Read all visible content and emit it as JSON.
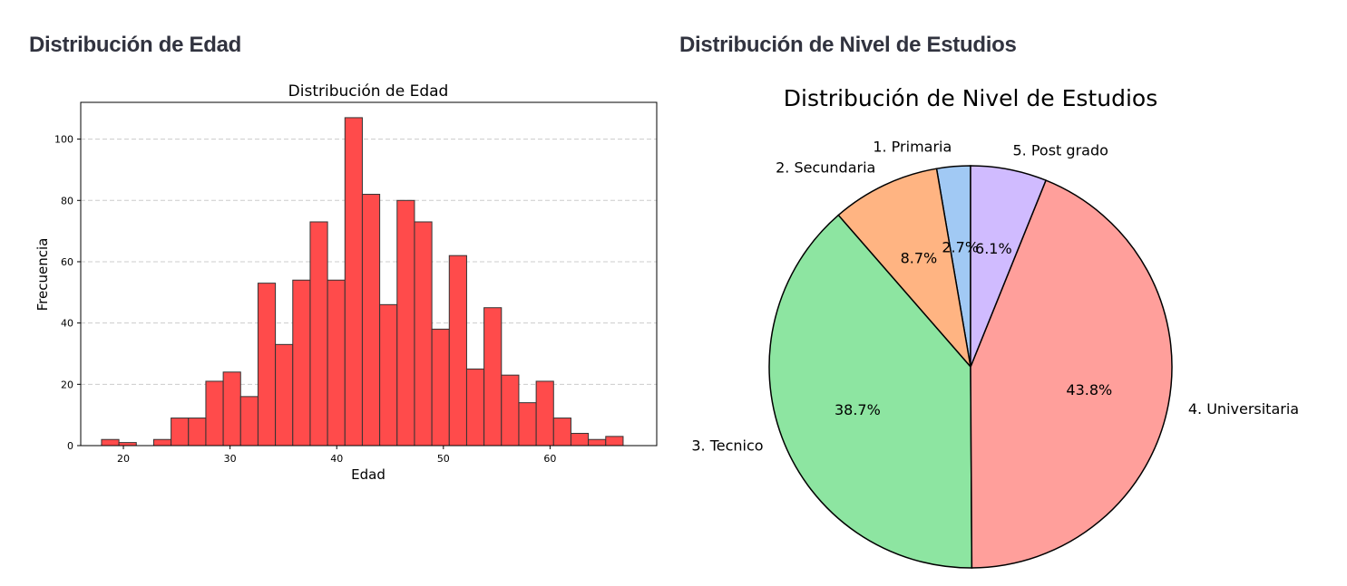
{
  "headings": {
    "left": "Distribución de Edad",
    "right": "Distribución de Nivel de Estudios"
  },
  "chart_data": [
    {
      "type": "bar",
      "subtype": "histogram",
      "title": "Distribución de Edad",
      "xlabel": "Edad",
      "ylabel": "Frecuencia",
      "xlim": [
        16,
        70
      ],
      "ylim": [
        0,
        112
      ],
      "x_ticks": [
        20,
        30,
        40,
        50,
        60
      ],
      "y_ticks": [
        0,
        20,
        40,
        60,
        80,
        100
      ],
      "grid": "y-dashed",
      "bar_color": "#ff4b4b",
      "bin_start": 17.95,
      "bin_width": 1.63,
      "values": [
        2,
        1,
        0,
        2,
        9,
        9,
        21,
        24,
        16,
        53,
        33,
        54,
        73,
        54,
        107,
        82,
        46,
        80,
        73,
        38,
        62,
        25,
        45,
        23,
        14,
        21,
        9,
        4,
        2,
        3
      ]
    },
    {
      "type": "pie",
      "title": "Distribución de Nivel de Estudios",
      "start_angle_deg": 90,
      "direction": "counterclockwise",
      "slices": [
        {
          "label": "1. Primaria",
          "percent": 2.7,
          "pct_text": "2.7%",
          "color": "#a1c9f4"
        },
        {
          "label": "2. Secundaria",
          "percent": 8.7,
          "pct_text": "8.7%",
          "color": "#ffb482"
        },
        {
          "label": "3. Tecnico",
          "percent": 38.7,
          "pct_text": "38.7%",
          "color": "#8de5a1"
        },
        {
          "label": "4. Universitaria",
          "percent": 43.8,
          "pct_text": "43.8%",
          "color": "#ff9f9b"
        },
        {
          "label": "5. Post grado",
          "percent": 6.1,
          "pct_text": "6.1%",
          "color": "#d0bbff"
        }
      ]
    }
  ]
}
